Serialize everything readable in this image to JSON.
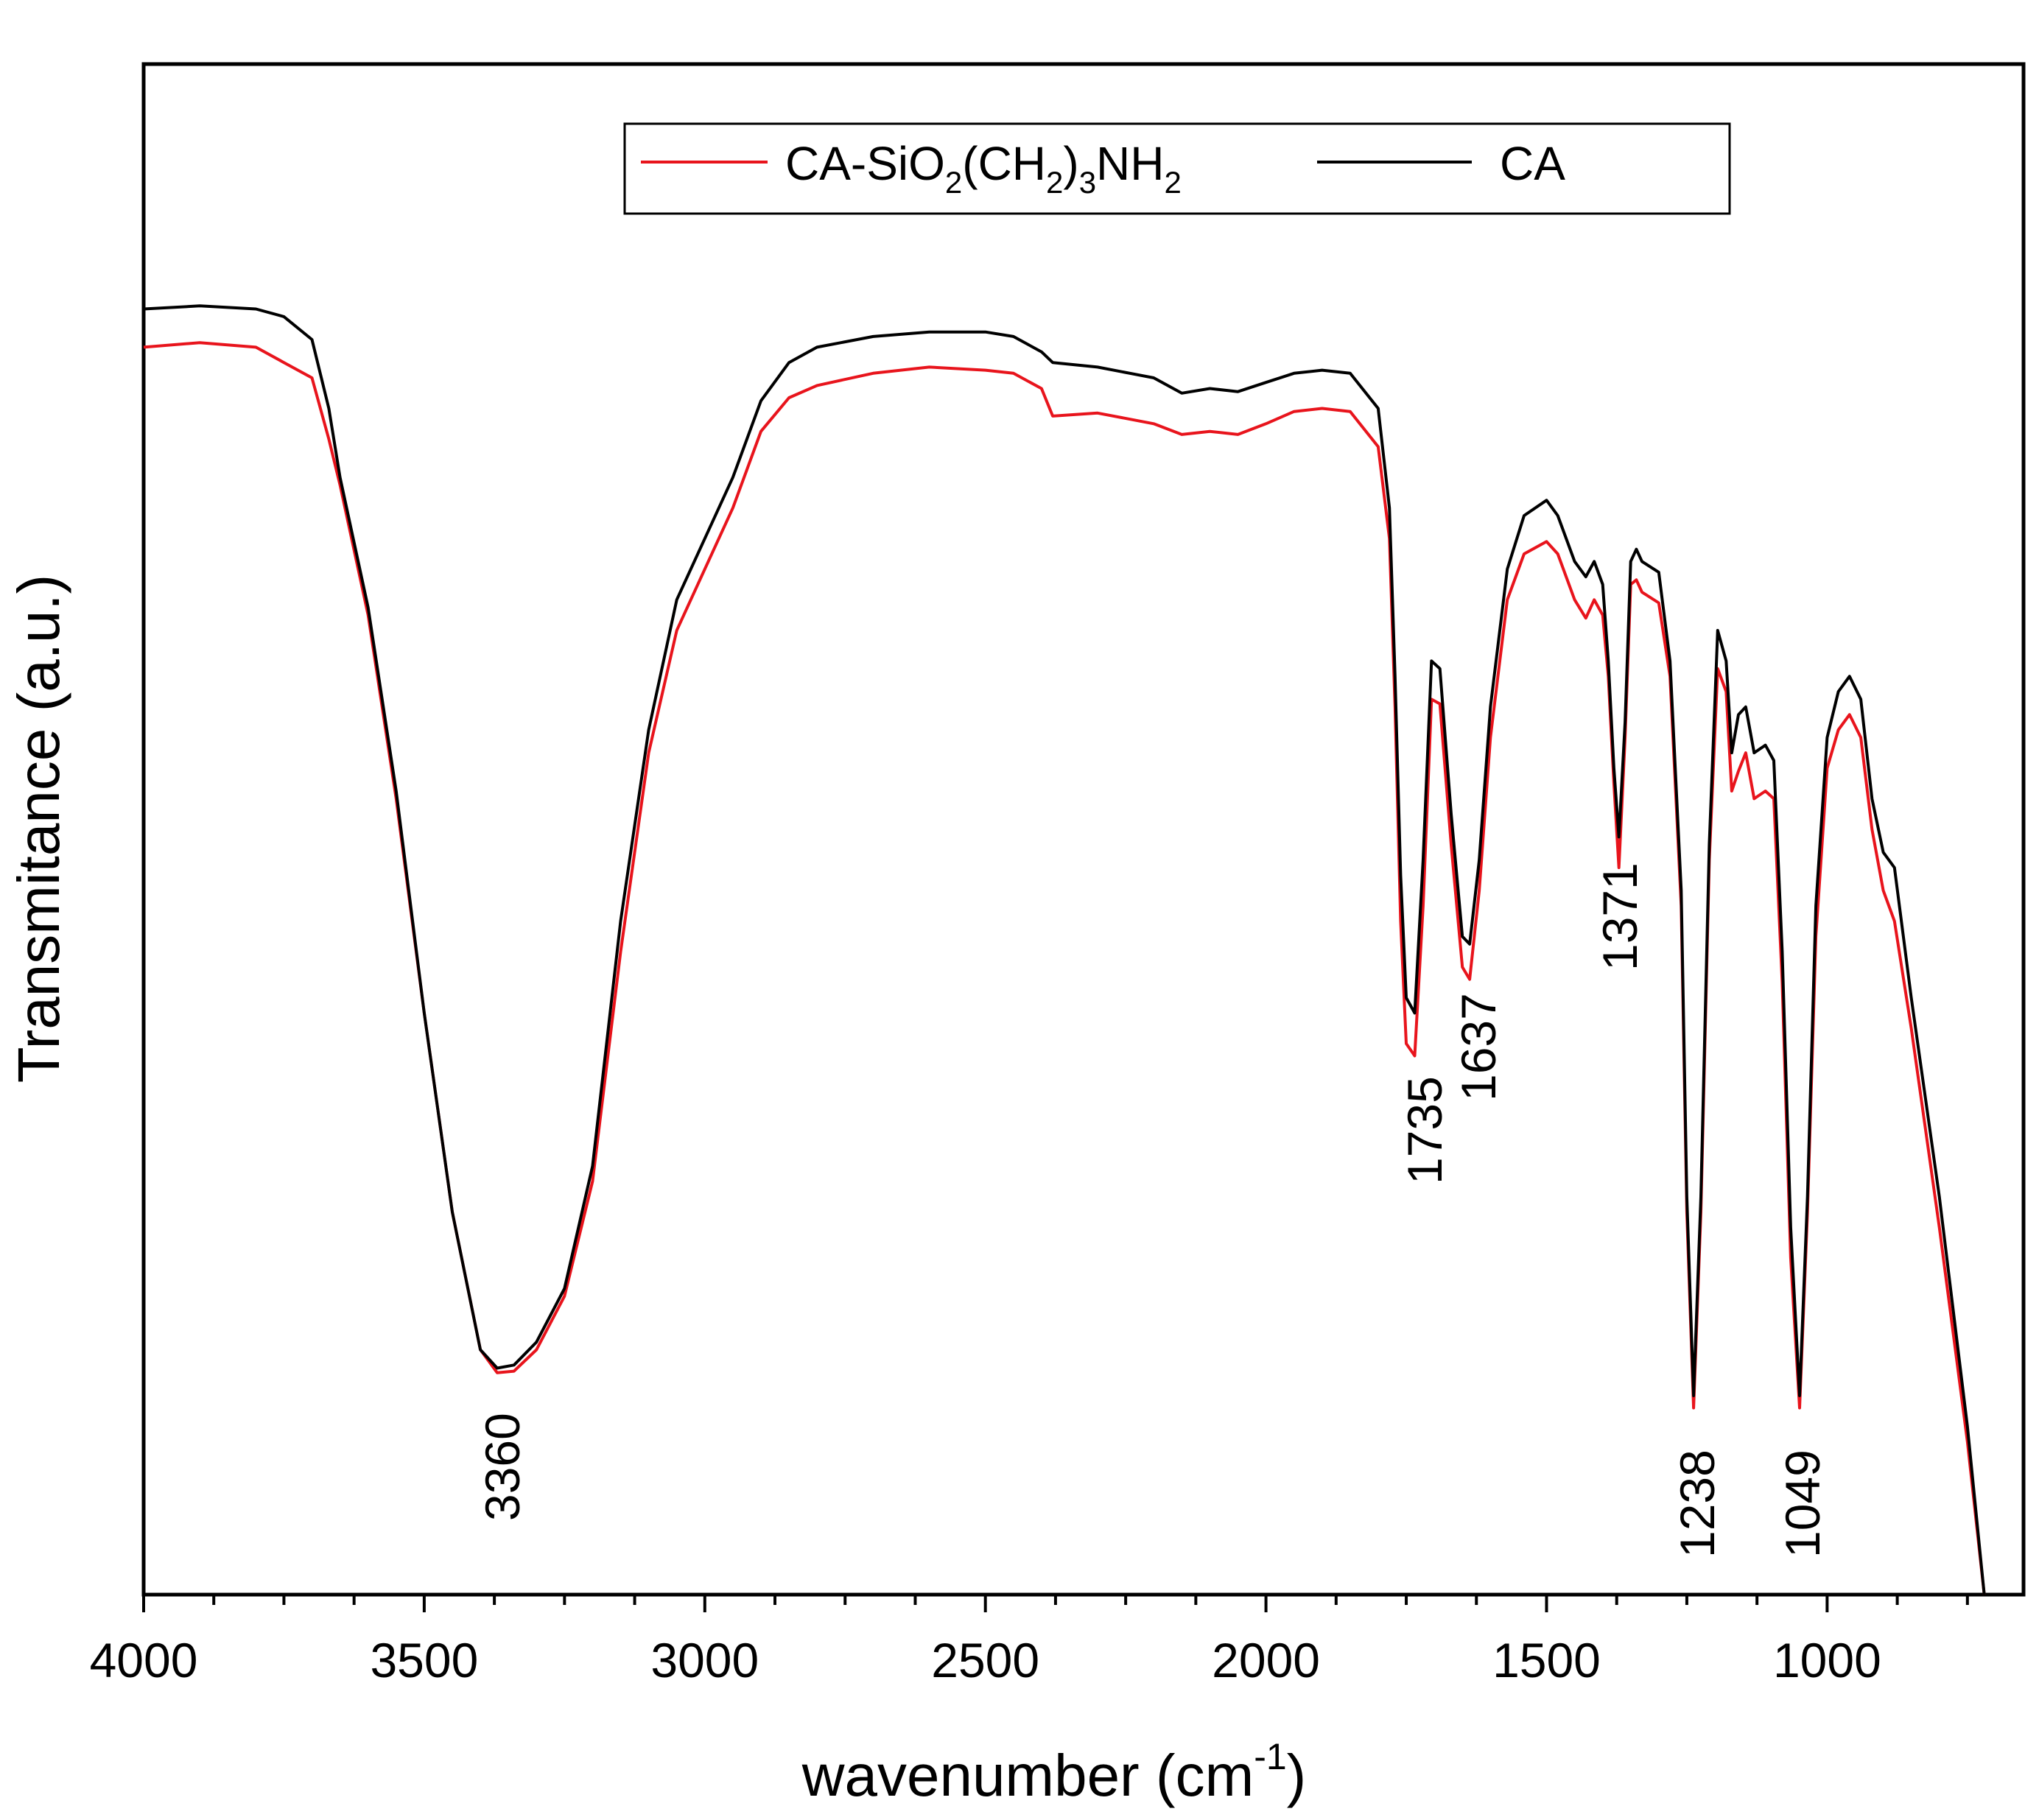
{
  "chart_data": {
    "type": "line",
    "xlabel": "wavenumber (cm",
    "xlabel_sup": "-1",
    "xlabel_end": ")",
    "ylabel": "Transmitance (a.u.)",
    "xlim": [
      4000,
      650
    ],
    "ylim": [
      0,
      100
    ],
    "x_ticks": [
      "4000",
      "3500",
      "3000",
      "2500",
      "2000",
      "1500",
      "1000"
    ],
    "y_ticks": [],
    "legend": {
      "position": "top-center",
      "entries": [
        {
          "series": "CA-SiO2(CH2)3NH2",
          "parts": [
            "CA-SiO",
            "2",
            "(CH",
            "2",
            ")",
            "3",
            "NH",
            "2"
          ]
        },
        {
          "series": "CA",
          "parts": [
            "CA"
          ]
        }
      ]
    },
    "peak_labels": [
      "3360",
      "1735",
      "1637",
      "1371",
      "1238",
      "1049"
    ],
    "series": [
      {
        "name": "CA-SiO2(CH2)3NH2",
        "color": "#e8141c",
        "points": [
          [
            4000,
            81.5
          ],
          [
            3900,
            81.8
          ],
          [
            3800,
            81.5
          ],
          [
            3750,
            80.5
          ],
          [
            3700,
            79.5
          ],
          [
            3670,
            75.5
          ],
          [
            3650,
            72.5
          ],
          [
            3600,
            64
          ],
          [
            3550,
            52
          ],
          [
            3500,
            38
          ],
          [
            3450,
            25
          ],
          [
            3400,
            16
          ],
          [
            3370,
            14.5
          ],
          [
            3340,
            14.6
          ],
          [
            3300,
            16
          ],
          [
            3250,
            19.5
          ],
          [
            3200,
            27
          ],
          [
            3150,
            42
          ],
          [
            3100,
            55
          ],
          [
            3050,
            63
          ],
          [
            3000,
            67
          ],
          [
            2950,
            71
          ],
          [
            2900,
            76
          ],
          [
            2850,
            78.2
          ],
          [
            2800,
            79
          ],
          [
            2700,
            79.8
          ],
          [
            2600,
            80.2
          ],
          [
            2500,
            80
          ],
          [
            2450,
            79.8
          ],
          [
            2400,
            78.8
          ],
          [
            2380,
            77
          ],
          [
            2300,
            77.2
          ],
          [
            2200,
            76.5
          ],
          [
            2150,
            75.8
          ],
          [
            2100,
            76
          ],
          [
            2050,
            75.8
          ],
          [
            2000,
            76.5
          ],
          [
            1950,
            77.3
          ],
          [
            1900,
            77.5
          ],
          [
            1850,
            77.3
          ],
          [
            1800,
            75
          ],
          [
            1780,
            69
          ],
          [
            1770,
            58
          ],
          [
            1760,
            44
          ],
          [
            1750,
            36
          ],
          [
            1735,
            35.2
          ],
          [
            1720,
            45
          ],
          [
            1705,
            58.5
          ],
          [
            1690,
            58.2
          ],
          [
            1670,
            49
          ],
          [
            1650,
            41
          ],
          [
            1637,
            40.2
          ],
          [
            1620,
            46
          ],
          [
            1600,
            56
          ],
          [
            1570,
            65
          ],
          [
            1540,
            68
          ],
          [
            1500,
            68.8
          ],
          [
            1480,
            68
          ],
          [
            1450,
            65
          ],
          [
            1430,
            63.8
          ],
          [
            1415,
            65
          ],
          [
            1400,
            64
          ],
          [
            1390,
            60
          ],
          [
            1380,
            53
          ],
          [
            1371,
            47.5
          ],
          [
            1360,
            56
          ],
          [
            1350,
            66
          ],
          [
            1340,
            66.3
          ],
          [
            1330,
            65.5
          ],
          [
            1300,
            64.8
          ],
          [
            1280,
            60
          ],
          [
            1260,
            45
          ],
          [
            1250,
            25
          ],
          [
            1238,
            12.2
          ],
          [
            1225,
            25
          ],
          [
            1210,
            48
          ],
          [
            1195,
            60.5
          ],
          [
            1180,
            59
          ],
          [
            1170,
            52.5
          ],
          [
            1158,
            53.8
          ],
          [
            1145,
            55
          ],
          [
            1130,
            52
          ],
          [
            1110,
            52.5
          ],
          [
            1095,
            52
          ],
          [
            1080,
            40
          ],
          [
            1065,
            22
          ],
          [
            1049,
            12.2
          ],
          [
            1035,
            25
          ],
          [
            1020,
            43
          ],
          [
            1000,
            54
          ],
          [
            980,
            56.5
          ],
          [
            960,
            57.5
          ],
          [
            940,
            56
          ],
          [
            920,
            50
          ],
          [
            900,
            46
          ],
          [
            880,
            44
          ],
          [
            850,
            37
          ],
          [
            800,
            24
          ],
          [
            750,
            10
          ],
          [
            720,
            0
          ]
        ]
      },
      {
        "name": "CA",
        "color": "#000000",
        "points": [
          [
            4000,
            84
          ],
          [
            3900,
            84.2
          ],
          [
            3800,
            84
          ],
          [
            3750,
            83.5
          ],
          [
            3700,
            82
          ],
          [
            3670,
            77.5
          ],
          [
            3650,
            73
          ],
          [
            3600,
            64.5
          ],
          [
            3550,
            52.5
          ],
          [
            3500,
            38
          ],
          [
            3450,
            25
          ],
          [
            3400,
            16
          ],
          [
            3370,
            14.8
          ],
          [
            3340,
            15
          ],
          [
            3300,
            16.5
          ],
          [
            3250,
            20
          ],
          [
            3200,
            28
          ],
          [
            3150,
            44
          ],
          [
            3100,
            56.5
          ],
          [
            3050,
            65
          ],
          [
            3000,
            69
          ],
          [
            2950,
            73
          ],
          [
            2900,
            78
          ],
          [
            2850,
            80.5
          ],
          [
            2800,
            81.5
          ],
          [
            2700,
            82.2
          ],
          [
            2600,
            82.5
          ],
          [
            2500,
            82.5
          ],
          [
            2450,
            82.2
          ],
          [
            2400,
            81.2
          ],
          [
            2380,
            80.5
          ],
          [
            2300,
            80.2
          ],
          [
            2200,
            79.5
          ],
          [
            2150,
            78.5
          ],
          [
            2100,
            78.8
          ],
          [
            2050,
            78.6
          ],
          [
            2000,
            79.2
          ],
          [
            1950,
            79.8
          ],
          [
            1900,
            80
          ],
          [
            1850,
            79.8
          ],
          [
            1800,
            77.5
          ],
          [
            1780,
            71
          ],
          [
            1770,
            60
          ],
          [
            1760,
            47
          ],
          [
            1750,
            39
          ],
          [
            1735,
            38
          ],
          [
            1720,
            48
          ],
          [
            1705,
            61
          ],
          [
            1690,
            60.5
          ],
          [
            1670,
            51
          ],
          [
            1650,
            43
          ],
          [
            1637,
            42.5
          ],
          [
            1620,
            48
          ],
          [
            1600,
            58
          ],
          [
            1570,
            67
          ],
          [
            1540,
            70.5
          ],
          [
            1500,
            71.5
          ],
          [
            1480,
            70.5
          ],
          [
            1450,
            67.5
          ],
          [
            1430,
            66.5
          ],
          [
            1415,
            67.5
          ],
          [
            1400,
            66
          ],
          [
            1390,
            61
          ],
          [
            1380,
            54
          ],
          [
            1371,
            49.5
          ],
          [
            1360,
            57
          ],
          [
            1350,
            67.5
          ],
          [
            1340,
            68.3
          ],
          [
            1330,
            67.5
          ],
          [
            1300,
            66.8
          ],
          [
            1280,
            61
          ],
          [
            1260,
            46
          ],
          [
            1250,
            26
          ],
          [
            1238,
            13
          ],
          [
            1225,
            26
          ],
          [
            1210,
            49
          ],
          [
            1195,
            63
          ],
          [
            1180,
            61
          ],
          [
            1170,
            55
          ],
          [
            1158,
            57.5
          ],
          [
            1145,
            58
          ],
          [
            1130,
            55
          ],
          [
            1110,
            55.5
          ],
          [
            1095,
            54.5
          ],
          [
            1080,
            42
          ],
          [
            1065,
            24
          ],
          [
            1049,
            13
          ],
          [
            1035,
            26
          ],
          [
            1020,
            45
          ],
          [
            1000,
            56
          ],
          [
            980,
            59
          ],
          [
            960,
            60
          ],
          [
            940,
            58.5
          ],
          [
            920,
            52
          ],
          [
            900,
            48.5
          ],
          [
            880,
            47.5
          ],
          [
            850,
            39
          ],
          [
            800,
            26
          ],
          [
            750,
            11
          ],
          [
            720,
            0
          ]
        ]
      }
    ]
  }
}
